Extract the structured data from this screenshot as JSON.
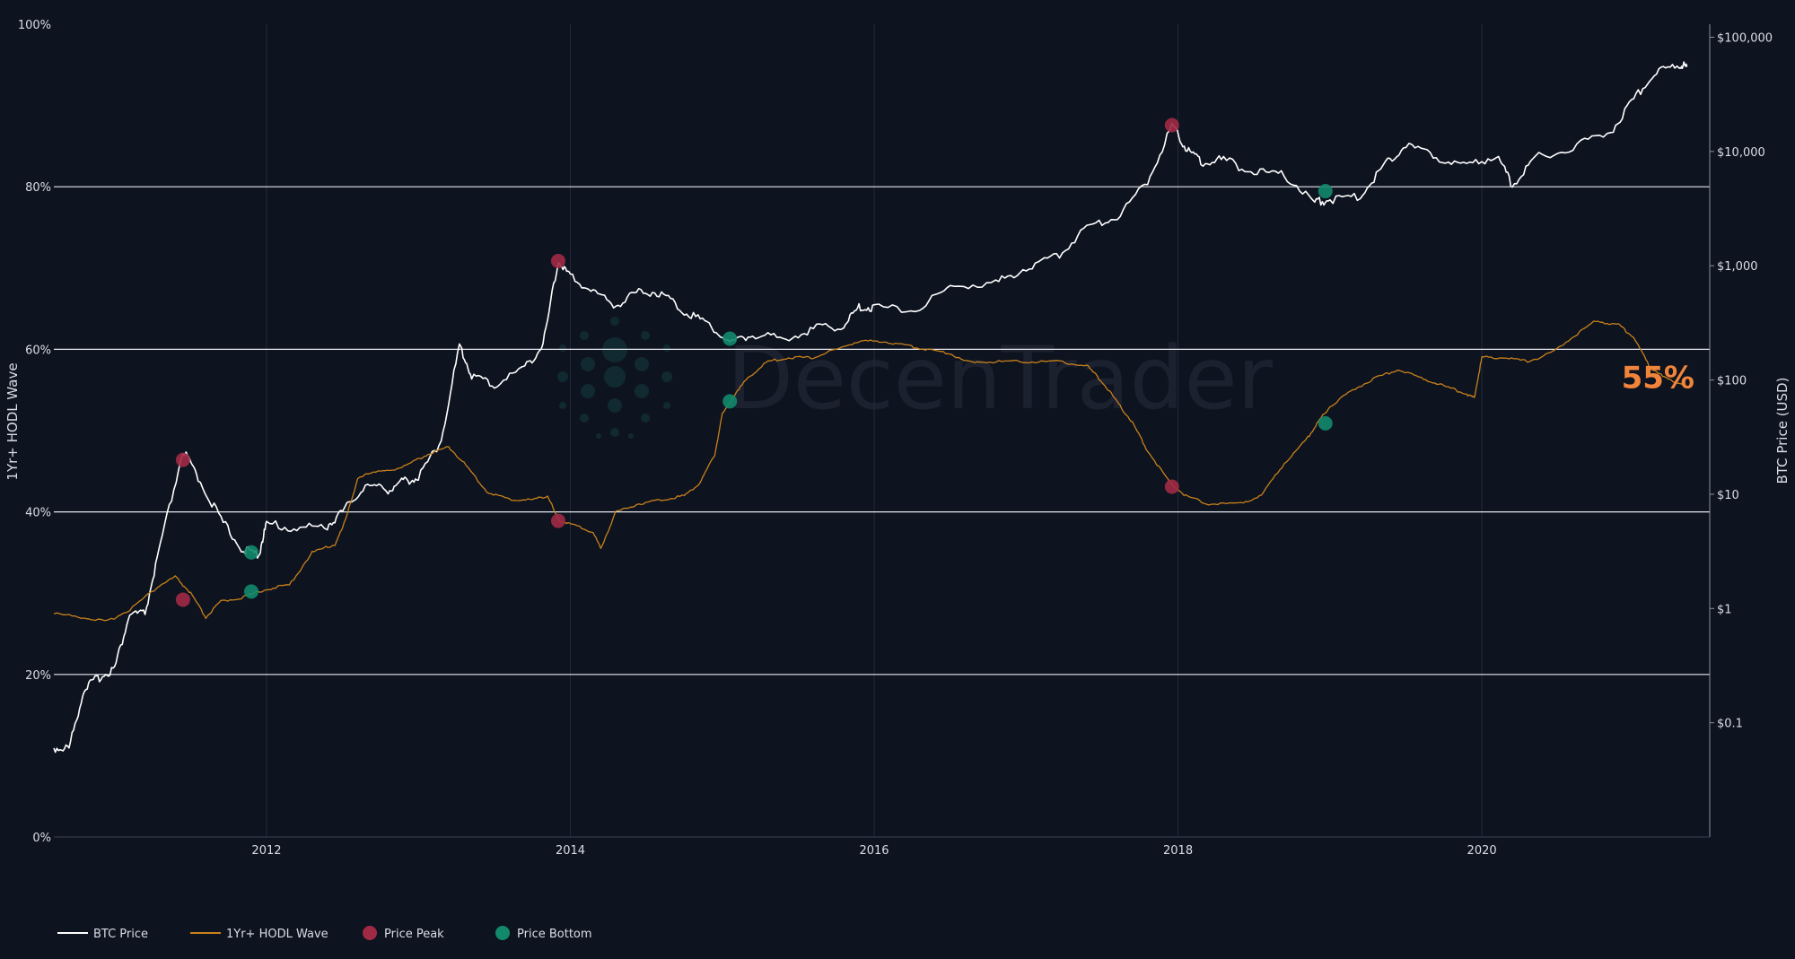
{
  "chart_data": {
    "type": "line",
    "xlabel": "",
    "ylabel_left": "1Yr+ HODL Wave",
    "ylabel_right": "BTC Price (USD)",
    "x_range": [
      "2010.6",
      "2021.5"
    ],
    "x_ticks": [
      {
        "value": 2012,
        "label": "2012"
      },
      {
        "value": 2014,
        "label": "2014"
      },
      {
        "value": 2016,
        "label": "2016"
      },
      {
        "value": 2018,
        "label": "2018"
      },
      {
        "value": 2020,
        "label": "2020"
      }
    ],
    "y_left_range": [
      0,
      100
    ],
    "y_left_ticks": [
      {
        "value": 0,
        "label": "0%"
      },
      {
        "value": 20,
        "label": "20%"
      },
      {
        "value": 40,
        "label": "40%"
      },
      {
        "value": 60,
        "label": "60%"
      },
      {
        "value": 80,
        "label": "80%"
      },
      {
        "value": 100,
        "label": "100%"
      }
    ],
    "y_right_scale": "log",
    "y_right_range": [
      0.01,
      130000
    ],
    "y_right_ticks": [
      {
        "value": 0.1,
        "label": "$0.1"
      },
      {
        "value": 1,
        "label": "$1"
      },
      {
        "value": 10,
        "label": "$10"
      },
      {
        "value": 100,
        "label": "$100"
      },
      {
        "value": 1000,
        "label": "$1,000"
      },
      {
        "value": 10000,
        "label": "$10,000"
      },
      {
        "value": 100000,
        "label": "$100,000"
      }
    ],
    "grid": {
      "horizontal": true,
      "vertical": true
    },
    "legend_placement": "bottom-left",
    "series": [
      {
        "name": "BTC Price",
        "axis": "right",
        "color": "#ffffff",
        "points": [
          [
            2010.6,
            0.06
          ],
          [
            2010.7,
            0.06
          ],
          [
            2010.8,
            0.2
          ],
          [
            2010.9,
            0.25
          ],
          [
            2011.0,
            0.3
          ],
          [
            2011.1,
            0.9
          ],
          [
            2011.2,
            0.9
          ],
          [
            2011.3,
            3.5
          ],
          [
            2011.45,
            24
          ],
          [
            2011.55,
            14
          ],
          [
            2011.7,
            6
          ],
          [
            2011.85,
            3.2
          ],
          [
            2011.95,
            3.0
          ],
          [
            2012.0,
            5.5
          ],
          [
            2012.2,
            5
          ],
          [
            2012.4,
            5.3
          ],
          [
            2012.5,
            7
          ],
          [
            2012.65,
            12
          ],
          [
            2012.8,
            11
          ],
          [
            2012.9,
            13
          ],
          [
            2013.0,
            14
          ],
          [
            2013.15,
            30
          ],
          [
            2013.27,
            200
          ],
          [
            2013.35,
            110
          ],
          [
            2013.5,
            90
          ],
          [
            2013.7,
            130
          ],
          [
            2013.82,
            200
          ],
          [
            2013.92,
            1100
          ],
          [
            2014.0,
            800
          ],
          [
            2014.15,
            600
          ],
          [
            2014.3,
            450
          ],
          [
            2014.45,
            600
          ],
          [
            2014.6,
            580
          ],
          [
            2014.75,
            400
          ],
          [
            2014.9,
            320
          ],
          [
            2015.05,
            210
          ],
          [
            2015.2,
            250
          ],
          [
            2015.4,
            230
          ],
          [
            2015.6,
            280
          ],
          [
            2015.8,
            300
          ],
          [
            2015.9,
            430
          ],
          [
            2016.0,
            430
          ],
          [
            2016.3,
            420
          ],
          [
            2016.5,
            660
          ],
          [
            2016.8,
            700
          ],
          [
            2017.0,
            960
          ],
          [
            2017.2,
            1200
          ],
          [
            2017.4,
            2200
          ],
          [
            2017.6,
            2700
          ],
          [
            2017.8,
            5500
          ],
          [
            2017.96,
            17000
          ],
          [
            2018.05,
            11000
          ],
          [
            2018.15,
            8000
          ],
          [
            2018.3,
            8500
          ],
          [
            2018.5,
            6500
          ],
          [
            2018.7,
            6300
          ],
          [
            2018.9,
            3600
          ],
          [
            2019.0,
            3800
          ],
          [
            2019.2,
            4000
          ],
          [
            2019.35,
            7500
          ],
          [
            2019.5,
            11500
          ],
          [
            2019.7,
            9000
          ],
          [
            2019.9,
            7200
          ],
          [
            2020.1,
            9500
          ],
          [
            2020.2,
            5000
          ],
          [
            2020.35,
            8800
          ],
          [
            2020.6,
            11000
          ],
          [
            2020.85,
            15000
          ],
          [
            2021.0,
            29000
          ],
          [
            2021.15,
            50000
          ],
          [
            2021.3,
            58000
          ],
          [
            2021.35,
            55000
          ]
        ]
      },
      {
        "name": "1Yr+ HODL Wave",
        "axis": "left",
        "color": "#c9821a",
        "points": [
          [
            2010.6,
            27.5
          ],
          [
            2010.8,
            27
          ],
          [
            2010.95,
            26.5
          ],
          [
            2011.1,
            28
          ],
          [
            2011.3,
            31
          ],
          [
            2011.4,
            32
          ],
          [
            2011.5,
            30
          ],
          [
            2011.6,
            27
          ],
          [
            2011.7,
            29
          ],
          [
            2011.85,
            29.5
          ],
          [
            2012.0,
            30.5
          ],
          [
            2012.15,
            31
          ],
          [
            2012.3,
            35
          ],
          [
            2012.45,
            36
          ],
          [
            2012.5,
            38
          ],
          [
            2012.6,
            44
          ],
          [
            2012.7,
            45
          ],
          [
            2012.8,
            45
          ],
          [
            2012.95,
            46
          ],
          [
            2013.05,
            47
          ],
          [
            2013.2,
            48
          ],
          [
            2013.3,
            46
          ],
          [
            2013.45,
            42.5
          ],
          [
            2013.6,
            41.5
          ],
          [
            2013.75,
            41.5
          ],
          [
            2013.85,
            42
          ],
          [
            2013.92,
            39
          ],
          [
            2014.0,
            38.5
          ],
          [
            2014.15,
            37.5
          ],
          [
            2014.2,
            35.5
          ],
          [
            2014.3,
            40
          ],
          [
            2014.45,
            41
          ],
          [
            2014.6,
            41.5
          ],
          [
            2014.75,
            42
          ],
          [
            2014.85,
            43.5
          ],
          [
            2014.95,
            47
          ],
          [
            2015.0,
            52
          ],
          [
            2015.1,
            55
          ],
          [
            2015.2,
            57
          ],
          [
            2015.3,
            58.5
          ],
          [
            2015.45,
            59
          ],
          [
            2015.6,
            59
          ],
          [
            2015.75,
            60
          ],
          [
            2015.9,
            61
          ],
          [
            2016.05,
            61
          ],
          [
            2016.2,
            60.5
          ],
          [
            2016.35,
            60
          ],
          [
            2016.5,
            59.5
          ],
          [
            2016.6,
            58.5
          ],
          [
            2016.8,
            58.5
          ],
          [
            2017.0,
            58.5
          ],
          [
            2017.2,
            58.5
          ],
          [
            2017.4,
            58
          ],
          [
            2017.5,
            56
          ],
          [
            2017.6,
            53.5
          ],
          [
            2017.7,
            51
          ],
          [
            2017.8,
            47.5
          ],
          [
            2017.95,
            43.5
          ],
          [
            2018.05,
            42
          ],
          [
            2018.2,
            41
          ],
          [
            2018.4,
            41
          ],
          [
            2018.55,
            42
          ],
          [
            2018.7,
            46
          ],
          [
            2018.85,
            49
          ],
          [
            2018.92,
            51
          ],
          [
            2019.0,
            53
          ],
          [
            2019.15,
            55
          ],
          [
            2019.3,
            56.5
          ],
          [
            2019.45,
            57.5
          ],
          [
            2019.6,
            56.5
          ],
          [
            2019.75,
            55.5
          ],
          [
            2019.9,
            54.5
          ],
          [
            2019.95,
            54
          ],
          [
            2020.0,
            59
          ],
          [
            2020.15,
            59
          ],
          [
            2020.3,
            58.5
          ],
          [
            2020.45,
            59.5
          ],
          [
            2020.6,
            61.5
          ],
          [
            2020.75,
            63.5
          ],
          [
            2020.9,
            63
          ],
          [
            2021.0,
            61.5
          ],
          [
            2021.1,
            58
          ],
          [
            2021.2,
            56.5
          ],
          [
            2021.35,
            55.5
          ]
        ]
      },
      {
        "name": "Price Peak",
        "type": "scatter",
        "color": "#a02a45",
        "points_price": [
          [
            2011.45,
            20
          ],
          [
            2013.92,
            1100
          ],
          [
            2017.96,
            17000
          ]
        ],
        "points_wave": [
          [
            2011.45,
            29.2
          ],
          [
            2013.92,
            38.9
          ],
          [
            2017.96,
            43.1
          ]
        ]
      },
      {
        "name": "Price Bottom",
        "type": "scatter",
        "color": "#12896b",
        "points_price": [
          [
            2011.9,
            3.1
          ],
          [
            2015.05,
            230
          ],
          [
            2018.97,
            4500
          ]
        ],
        "points_wave": [
          [
            2011.9,
            30.2
          ],
          [
            2015.05,
            53.6
          ],
          [
            2018.97,
            50.9
          ]
        ]
      }
    ],
    "annotations": [
      {
        "text": "55%",
        "x": 2021.35,
        "y_left": 55,
        "color": "#f0843a"
      }
    ],
    "watermark": "DecenTrader"
  }
}
